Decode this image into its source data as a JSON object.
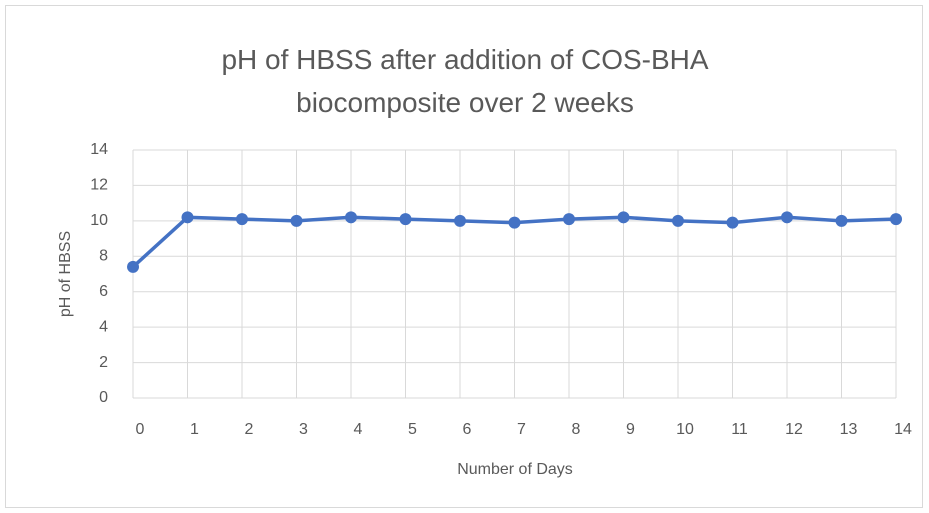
{
  "chart_data": {
    "type": "line",
    "title": "pH of HBSS after addition of COS-BHA biocomposite over 2 weeks",
    "x_label": "Number of Days",
    "y_label": "pH of HBSS",
    "x": [
      0,
      1,
      2,
      3,
      4,
      5,
      6,
      7,
      8,
      9,
      10,
      11,
      12,
      13,
      14
    ],
    "series": [
      {
        "name": "pH of HBSS",
        "color": "#4472c4",
        "values": [
          7.4,
          10.2,
          10.1,
          10.0,
          10.2,
          10.1,
          10.0,
          9.9,
          10.1,
          10.2,
          10.0,
          9.9,
          10.2,
          10.0,
          10.1
        ]
      }
    ],
    "xlim": [
      0,
      14
    ],
    "xticks": [
      0,
      1,
      2,
      3,
      4,
      5,
      6,
      7,
      8,
      9,
      10,
      11,
      12,
      13,
      14
    ],
    "ylim": [
      0,
      14
    ],
    "yticks": [
      0,
      2,
      4,
      6,
      8,
      10,
      12,
      14
    ],
    "grid": true
  }
}
